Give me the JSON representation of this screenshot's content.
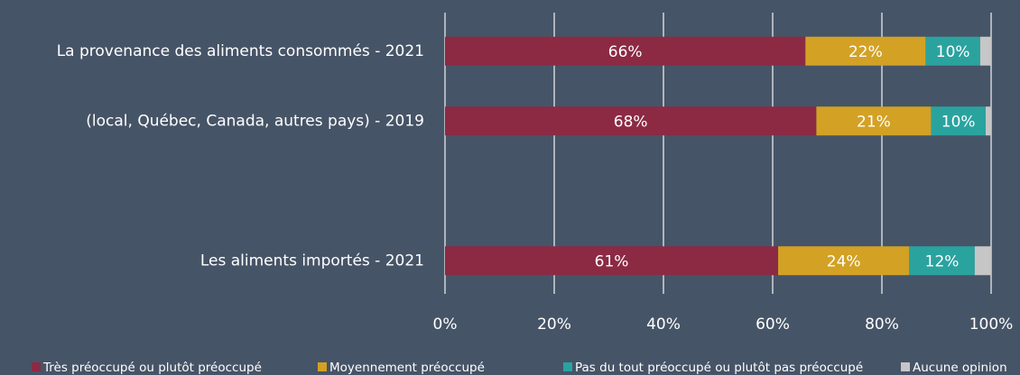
{
  "chart_data": {
    "type": "stacked-bar-horizontal",
    "categories": [
      "La provenance des aliments consommés - 2021",
      "(local, Québec, Canada, autres pays) - 2019",
      null,
      "Les aliments importés - 2021"
    ],
    "series": [
      {
        "name": "Très préoccupé ou plutôt préoccupé",
        "color": "#8c2a44",
        "values": [
          66,
          68,
          null,
          61
        ],
        "value_labels": [
          "66%",
          "68%",
          null,
          "61%"
        ]
      },
      {
        "name": "Moyennement préoccupé",
        "color": "#d3a124",
        "values": [
          22,
          21,
          null,
          24
        ],
        "value_labels": [
          "22%",
          "21%",
          null,
          "24%"
        ]
      },
      {
        "name": "Pas du tout préoccupé ou plutôt pas préoccupé",
        "color": "#2aa39f",
        "values": [
          10,
          10,
          null,
          12
        ],
        "value_labels": [
          "10%",
          "10%",
          null,
          "12%"
        ]
      },
      {
        "name": "Aucune opinion",
        "color": "#c6c6c6",
        "values": [
          2,
          1,
          null,
          3
        ]
      }
    ],
    "xlim": [
      0,
      100
    ],
    "xticks": [
      {
        "value": 0,
        "label": "0%"
      },
      {
        "value": 20,
        "label": "20%"
      },
      {
        "value": 40,
        "label": "40%"
      },
      {
        "value": 60,
        "label": "60%"
      },
      {
        "value": 80,
        "label": "80%"
      },
      {
        "value": 100,
        "label": "100%"
      }
    ],
    "grid": true,
    "legend": "bottom"
  }
}
